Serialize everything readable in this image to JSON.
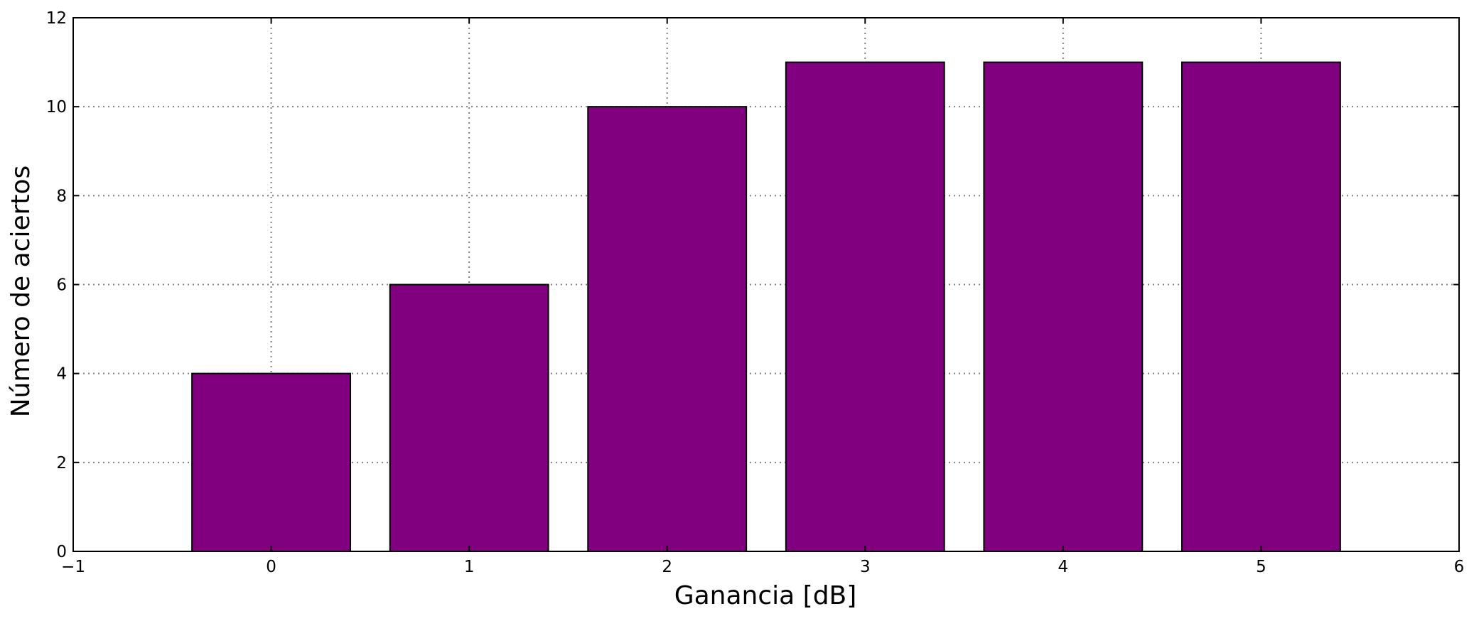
{
  "chart_data": {
    "type": "bar",
    "x": [
      0,
      1,
      2,
      3,
      4,
      5
    ],
    "values": [
      4,
      6,
      10,
      11,
      11,
      11
    ],
    "bar_width": 0.8,
    "title": "",
    "xlabel": "Ganancia [dB]",
    "ylabel": "Número de aciertos",
    "xlim": [
      -1,
      6
    ],
    "ylim": [
      0,
      12
    ],
    "xticks": [
      -1,
      0,
      1,
      2,
      3,
      4,
      5,
      6
    ],
    "xtick_labels": [
      "−1",
      "0",
      "1",
      "2",
      "3",
      "4",
      "5",
      "6"
    ],
    "yticks": [
      0,
      2,
      4,
      6,
      8,
      10,
      12
    ],
    "ytick_labels": [
      "0",
      "2",
      "4",
      "6",
      "8",
      "10",
      "12"
    ],
    "grid": true,
    "legend": "none",
    "colors": {
      "bar_fill": "#800080",
      "bar_edge": "#000000",
      "grid": "#808080"
    }
  }
}
